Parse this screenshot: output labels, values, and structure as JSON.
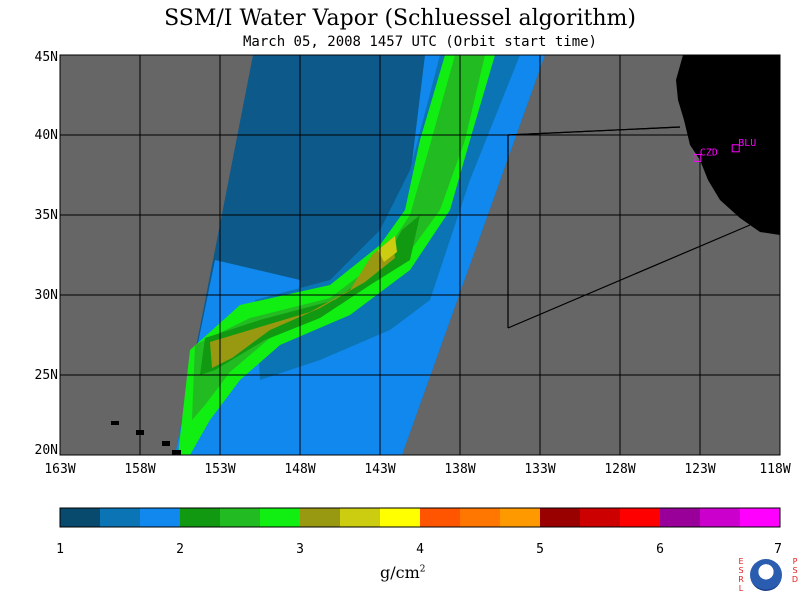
{
  "title": "SSM/I Water Vapor (Schluessel algorithm)",
  "subtitle": "March 05, 2008  1457 UTC  (Orbit start time)",
  "y_ticks": [
    "45N",
    "40N",
    "35N",
    "30N",
    "25N",
    "20N"
  ],
  "x_ticks": [
    "163W",
    "158W",
    "153W",
    "148W",
    "143W",
    "138W",
    "133W",
    "128W",
    "123W",
    "118W"
  ],
  "colorbar": {
    "labels": [
      "1",
      "2",
      "3",
      "4",
      "5",
      "6",
      "7"
    ],
    "unit": "g/cm",
    "unit_exp": "2",
    "colors": [
      "#084a6e",
      "#0a74b5",
      "#1188ee",
      "#119911",
      "#22bb22",
      "#11ee11",
      "#999911",
      "#cccc11",
      "#ffff00",
      "#ff5500",
      "#ff7700",
      "#ff9900",
      "#990000",
      "#cc0000",
      "#ff0000",
      "#990099",
      "#cc00cc",
      "#ff00ff"
    ]
  },
  "stations": [
    {
      "label": "CZD",
      "lon": -123.2,
      "lat": 38.6
    },
    {
      "label": "BLU",
      "lon": -120.8,
      "lat": 39.2
    }
  ],
  "map": {
    "lon_range": [
      -163,
      -118
    ],
    "lat_range": [
      20,
      45
    ],
    "land_color": "#000000",
    "nodata_color": "#666666",
    "low_vapor_color": "#0d5a8a"
  },
  "logo": {
    "left_text": "ESRL",
    "right_text": "PSD",
    "center_text": "NOAA"
  }
}
